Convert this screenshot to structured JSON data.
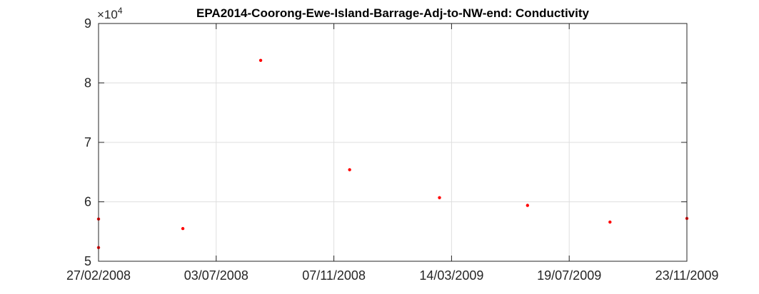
{
  "chart_data": {
    "type": "scatter",
    "title": "EPA2014-Coorong-Ewe-Island-Barrage-Adj-to-NW-end: Conductivity",
    "xlabel": "",
    "ylabel": "",
    "x_axis": {
      "type": "date",
      "range": [
        "2008-02-27",
        "2009-11-23"
      ],
      "ticks": [
        "2008-02-27",
        "2008-07-03",
        "2008-11-07",
        "2009-03-14",
        "2009-07-19",
        "2009-11-23"
      ],
      "tick_labels": [
        "27/02/2008",
        "03/07/2008",
        "07/11/2008",
        "14/03/2009",
        "19/07/2009",
        "23/11/2009"
      ]
    },
    "y_axis": {
      "range": [
        50000,
        90000
      ],
      "ticks": [
        50000,
        60000,
        70000,
        80000,
        90000
      ],
      "tick_labels": [
        "5",
        "6",
        "7",
        "8",
        "9"
      ],
      "exponent_label": "×10",
      "exponent_power": "4"
    },
    "grid": true,
    "marker_color": "#ff0000",
    "points": [
      {
        "x": "2008-02-27",
        "y": 57100
      },
      {
        "x": "2008-02-27",
        "y": 52300
      },
      {
        "x": "2008-05-28",
        "y": 55500
      },
      {
        "x": "2008-08-20",
        "y": 83800
      },
      {
        "x": "2008-11-24",
        "y": 65400
      },
      {
        "x": "2009-03-01",
        "y": 60700
      },
      {
        "x": "2009-06-04",
        "y": 59400
      },
      {
        "x": "2009-09-01",
        "y": 56600
      },
      {
        "x": "2009-11-23",
        "y": 57200
      }
    ]
  }
}
